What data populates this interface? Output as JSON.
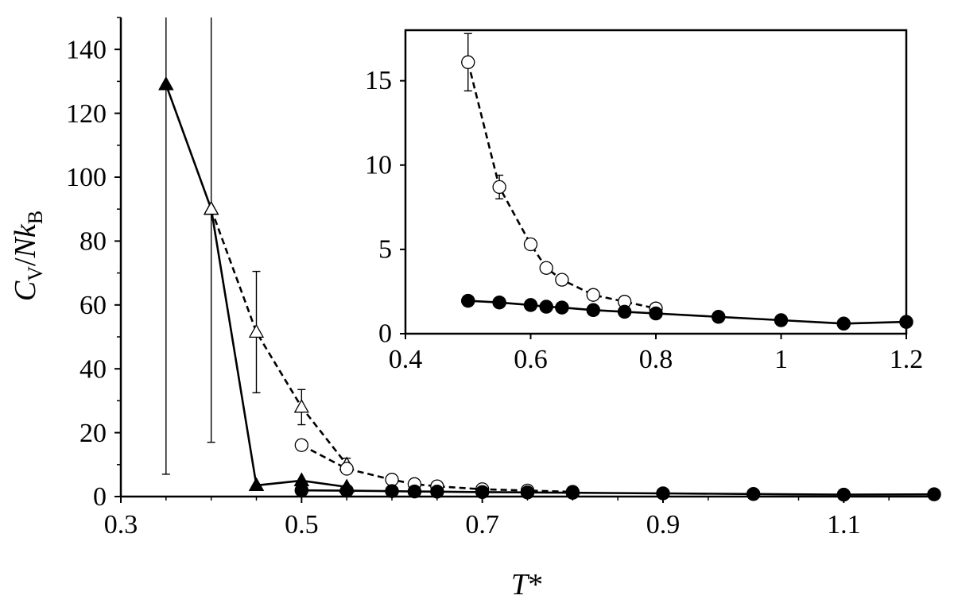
{
  "chart_data": [
    {
      "type": "scatter",
      "panel": "main",
      "xlabel": "T*",
      "ylabel": "C_V/Nk_B",
      "xlim": [
        0.3,
        1.2
      ],
      "ylim": [
        0,
        150
      ],
      "xticks": [
        "0.3",
        "0.5",
        "0.7",
        "0.9",
        "1.1"
      ],
      "yticks": [
        "0",
        "20",
        "40",
        "60",
        "80",
        "100",
        "120",
        "140"
      ],
      "grid": false,
      "series": [
        {
          "style": "solid line, filled triangles",
          "x": [
            0.35,
            0.4,
            0.45,
            0.5,
            0.55
          ],
          "y": [
            129,
            90,
            3.5,
            5,
            3
          ],
          "err": [
            122,
            73,
            0,
            0,
            0
          ]
        },
        {
          "style": "dashed line, open triangles",
          "x": [
            0.4,
            0.45,
            0.5,
            0.55
          ],
          "y": [
            90,
            51.5,
            28,
            10
          ],
          "err": [
            0,
            19,
            5.5,
            2
          ]
        },
        {
          "style": "dashed line, open circles",
          "x": [
            0.5,
            0.55,
            0.6,
            0.625,
            0.65,
            0.7,
            0.75,
            0.8
          ],
          "y": [
            16.1,
            8.7,
            5.3,
            3.9,
            3.2,
            2.3,
            1.9,
            1.5
          ],
          "err": [
            1.7,
            0.7,
            0.2,
            0.3,
            0.3,
            0.2,
            0.2,
            0.1
          ]
        },
        {
          "style": "solid line, filled circles",
          "x": [
            0.5,
            0.55,
            0.6,
            0.625,
            0.65,
            0.7,
            0.75,
            0.8,
            0.9,
            1.0,
            1.1,
            1.2
          ],
          "y": [
            1.95,
            1.85,
            1.7,
            1.6,
            1.55,
            1.4,
            1.3,
            1.2,
            1.0,
            0.8,
            0.6,
            0.7
          ],
          "err": [
            0,
            0,
            0,
            0,
            0,
            0,
            0,
            0,
            0,
            0,
            0,
            0
          ]
        }
      ]
    },
    {
      "type": "scatter",
      "panel": "inset",
      "xlim": [
        0.4,
        1.2
      ],
      "ylim": [
        0,
        18
      ],
      "xticks": [
        "0.4",
        "0.6",
        "0.8",
        "1",
        "1.2"
      ],
      "yticks": [
        "0",
        "5",
        "10",
        "15"
      ],
      "grid": false,
      "series": [
        {
          "style": "dashed line, open circles",
          "x": [
            0.5,
            0.55,
            0.6,
            0.625,
            0.65,
            0.7,
            0.75,
            0.8
          ],
          "y": [
            16.1,
            8.7,
            5.3,
            3.9,
            3.2,
            2.3,
            1.9,
            1.5
          ],
          "err": [
            1.7,
            0.7,
            0.2,
            0.3,
            0.3,
            0.2,
            0.2,
            0.1
          ]
        },
        {
          "style": "solid line, filled circles",
          "x": [
            0.5,
            0.55,
            0.6,
            0.625,
            0.65,
            0.7,
            0.75,
            0.8,
            0.9,
            1.0,
            1.1,
            1.2
          ],
          "y": [
            1.95,
            1.85,
            1.7,
            1.6,
            1.55,
            1.4,
            1.3,
            1.2,
            1.0,
            0.8,
            0.6,
            0.7
          ],
          "err": [
            0,
            0,
            0,
            0,
            0,
            0,
            0,
            0,
            0,
            0,
            0,
            0
          ]
        }
      ]
    }
  ],
  "labels": {
    "x_main": "T",
    "x_star": "*",
    "y_C": "C",
    "y_V": "V",
    "y_slash": "/",
    "y_N": "N",
    "y_k": "k",
    "y_B": "B"
  }
}
